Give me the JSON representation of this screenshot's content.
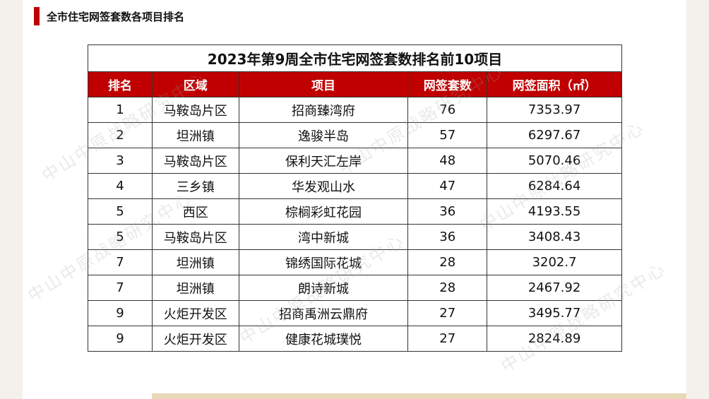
{
  "header": {
    "title": "全市住宅网签套数各项目排名"
  },
  "watermark": "中山中原战略研究中心",
  "table": {
    "title": "2023年第9周全市住宅网签套数排名前10项目",
    "columns": [
      "排名",
      "区域",
      "项目",
      "网签套数",
      "网签面积（㎡）"
    ],
    "rows": [
      [
        1,
        "马鞍岛片区",
        "招商臻湾府",
        76,
        7353.97
      ],
      [
        2,
        "坦洲镇",
        "逸骏半岛",
        57,
        6297.67
      ],
      [
        3,
        "马鞍岛片区",
        "保利天汇左岸",
        48,
        5070.46
      ],
      [
        4,
        "三乡镇",
        "华发观山水",
        47,
        6284.64
      ],
      [
        5,
        "西区",
        "棕榈彩虹花园",
        36,
        4193.55
      ],
      [
        5,
        "马鞍岛片区",
        "湾中新城",
        36,
        3408.43
      ],
      [
        7,
        "坦洲镇",
        "锦绣国际花城",
        28,
        3202.7
      ],
      [
        7,
        "坦洲镇",
        "朗诗新城",
        28,
        2467.92
      ],
      [
        9,
        "火炬开发区",
        "招商禹洲云鼎府",
        27,
        3495.77
      ],
      [
        9,
        "火炬开发区",
        "健康花城璞悦",
        27,
        2824.89
      ]
    ]
  }
}
